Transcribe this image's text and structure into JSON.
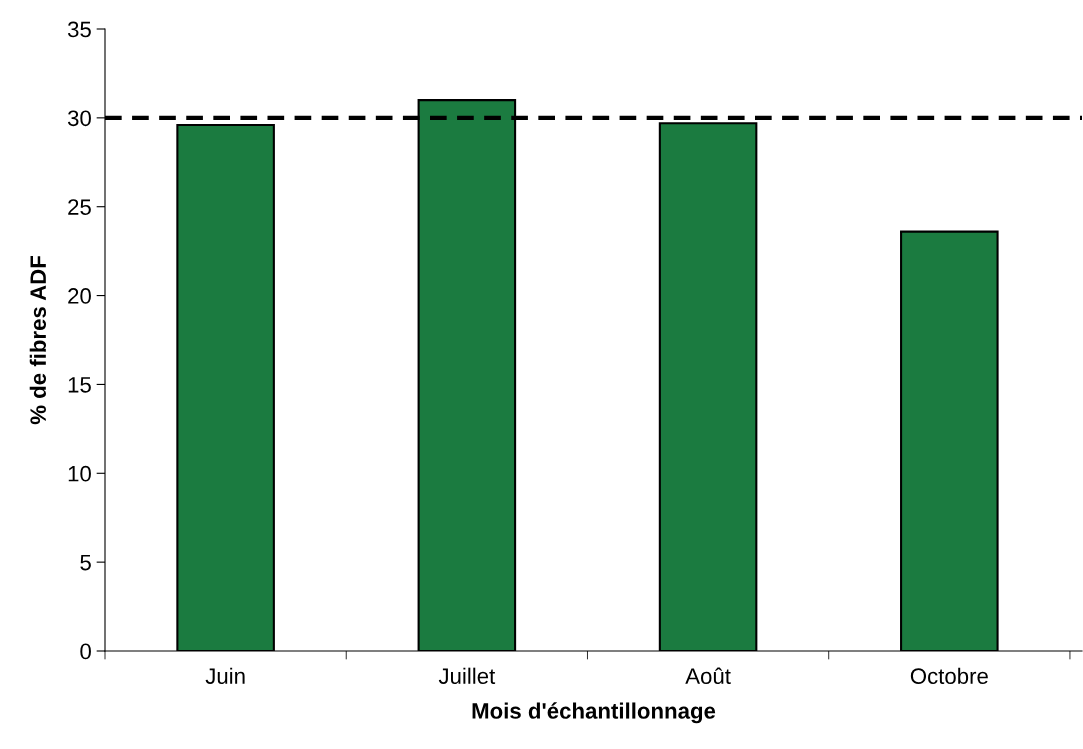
{
  "chart_data": {
    "type": "bar",
    "xlabel": "Mois d'échantillonnage",
    "ylabel": "% de fibres ADF",
    "categories": [
      "Juin",
      "Juillet",
      "Août",
      "Octobre"
    ],
    "values": [
      29.6,
      31.0,
      29.7,
      23.6
    ],
    "color": "#1b7b40",
    "ylim": [
      0,
      35
    ],
    "yticks": [
      0,
      5,
      10,
      15,
      20,
      25,
      30,
      35
    ],
    "grid": false,
    "ref_lines": [
      {
        "axis": "y",
        "value": 30,
        "color": "#000000",
        "line_style": "dashed"
      }
    ]
  }
}
